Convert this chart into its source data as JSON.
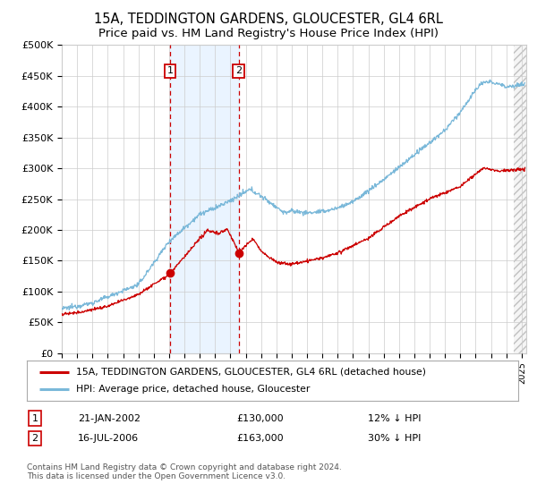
{
  "title": "15A, TEDDINGTON GARDENS, GLOUCESTER, GL4 6RL",
  "subtitle": "Price paid vs. HM Land Registry's House Price Index (HPI)",
  "xlim_start": 1995.0,
  "xlim_end": 2025.3,
  "ylim": [
    0,
    500000
  ],
  "yticks": [
    0,
    50000,
    100000,
    150000,
    200000,
    250000,
    300000,
    350000,
    400000,
    450000,
    500000
  ],
  "sale1_x": 2002.055,
  "sale1_y": 130000,
  "sale2_x": 2006.54,
  "sale2_y": 163000,
  "hatch_start": 2024.5,
  "hpi_color": "#7ab8d9",
  "price_color": "#cc0000",
  "shade_color": "#ddeeff",
  "grid_color": "#cccccc",
  "bg_color": "#ffffff",
  "legend_label_price": "15A, TEDDINGTON GARDENS, GLOUCESTER, GL4 6RL (detached house)",
  "legend_label_hpi": "HPI: Average price, detached house, Gloucester",
  "note1_date": "21-JAN-2002",
  "note1_price": "£130,000",
  "note1_hpi": "12% ↓ HPI",
  "note2_date": "16-JUL-2006",
  "note2_price": "£163,000",
  "note2_hpi": "30% ↓ HPI",
  "footer": "Contains HM Land Registry data © Crown copyright and database right 2024.\nThis data is licensed under the Open Government Licence v3.0.",
  "title_fontsize": 10.5,
  "subtitle_fontsize": 9.5,
  "tick_fontsize": 8,
  "label_fontsize": 8
}
